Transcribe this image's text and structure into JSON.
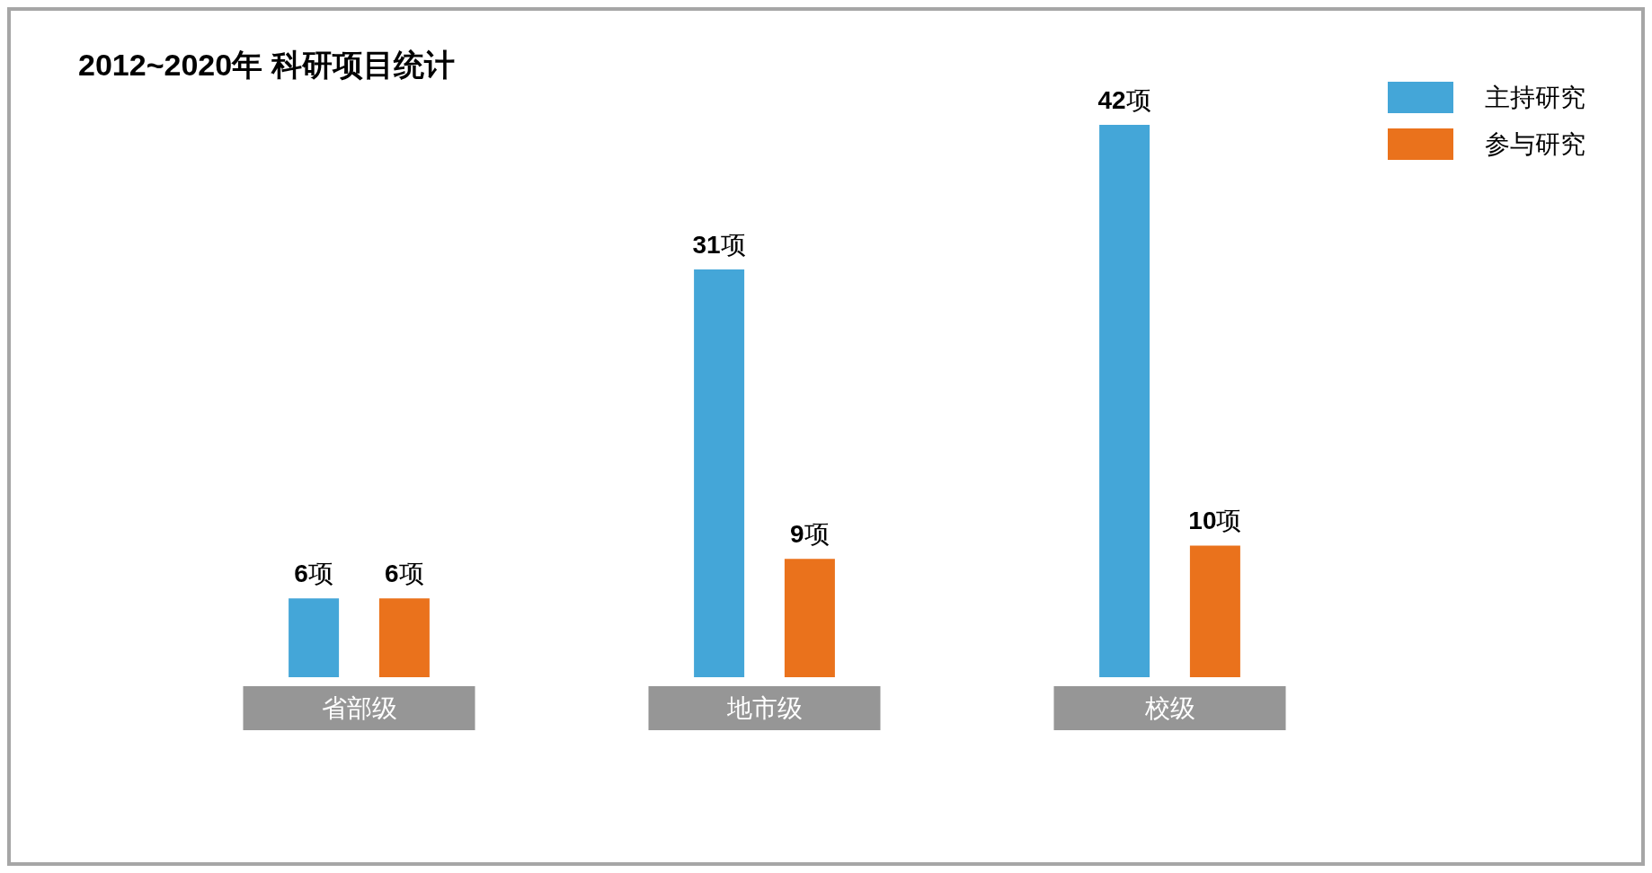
{
  "chart_data": {
    "type": "bar",
    "title": "2012~2020年 科研项目统计",
    "categories": [
      "省部级",
      "地市级",
      "校级"
    ],
    "series": [
      {
        "name": "主持研究",
        "color": "#44a6d8",
        "values": [
          6,
          31,
          42
        ],
        "value_labels": [
          "6项",
          "31项",
          "42项"
        ]
      },
      {
        "name": "参与研究",
        "color": "#ea721c",
        "values": [
          6,
          9,
          10
        ],
        "value_labels": [
          "6项",
          "9项",
          "10项"
        ]
      }
    ],
    "legend": "top right",
    "tick_labels": "x"
  }
}
